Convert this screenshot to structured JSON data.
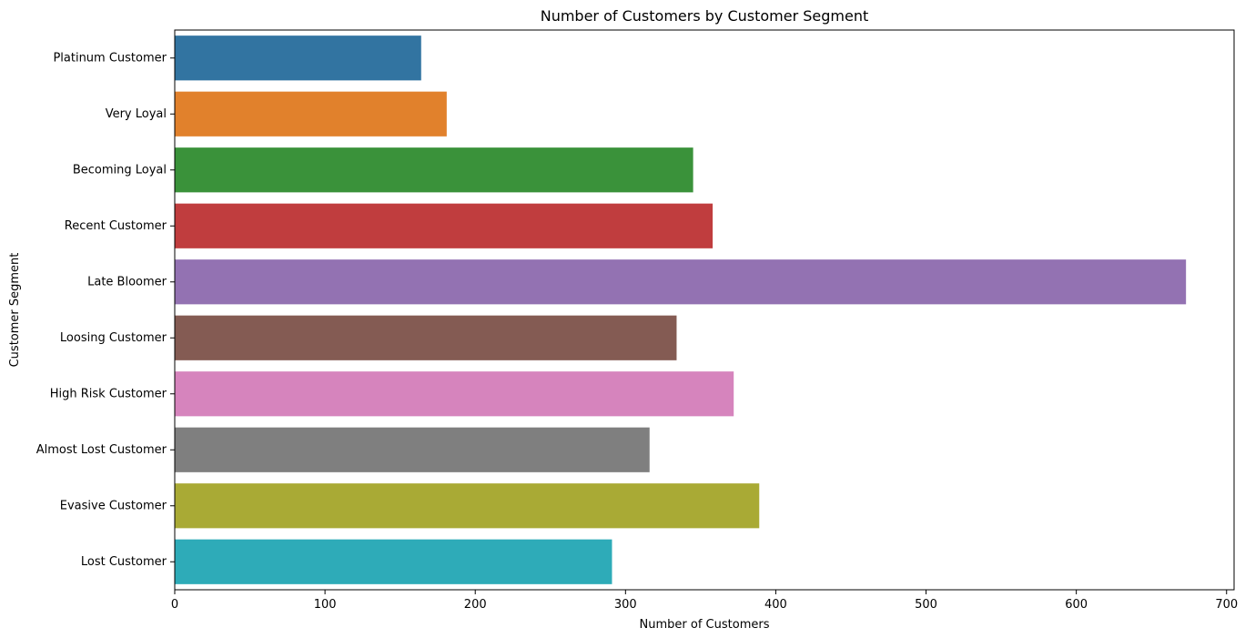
{
  "chart_data": {
    "type": "bar",
    "orientation": "horizontal",
    "title": "Number of Customers by Customer Segment",
    "xlabel": "Number of Customers",
    "ylabel": "Customer Segment",
    "xlim": [
      0,
      705
    ],
    "xticks": [
      0,
      100,
      200,
      300,
      400,
      500,
      600,
      700
    ],
    "grid": false,
    "categories": [
      "Platinum Customer",
      "Very Loyal",
      "Becoming Loyal",
      "Recent Customer",
      "Late Bloomer",
      "Loosing Customer",
      "High Risk Customer",
      "Almost Lost Customer",
      "Evasive Customer",
      "Lost Customer"
    ],
    "values": [
      164,
      181,
      345,
      358,
      673,
      334,
      372,
      316,
      389,
      291
    ],
    "colors": [
      "#3274a1",
      "#e1812c",
      "#3a923a",
      "#c03d3e",
      "#9372b2",
      "#845b53",
      "#d684bd",
      "#7f7f7f",
      "#a9aa35",
      "#2eabb8"
    ]
  }
}
